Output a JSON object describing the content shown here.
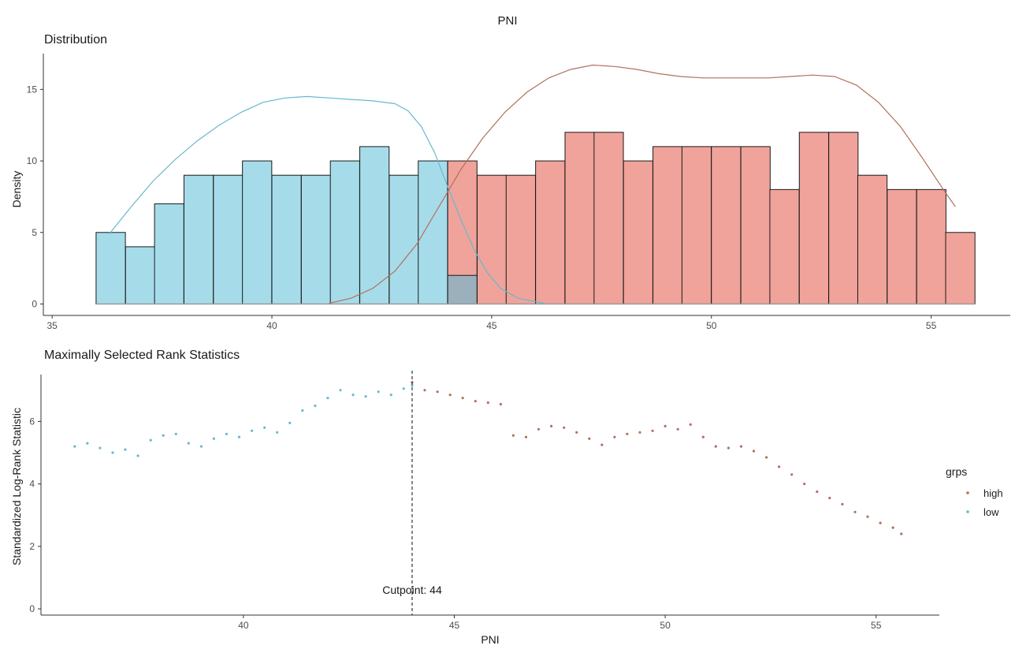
{
  "figure_title": "PNI",
  "colors": {
    "low": "#67b8cf",
    "high": "#b3705f",
    "low_fill": "#a6dcea",
    "high_fill": "#f0a39a",
    "overlap_fill": "#9bb0bc",
    "bar_stroke": "#1a1a1a",
    "axis": "#333333",
    "tick_text": "#4d4d4d"
  },
  "chart_data": [
    {
      "type": "bar",
      "title": "Distribution",
      "xlabel": "",
      "ylabel": "Density",
      "xlim": [
        34.8,
        56.8
      ],
      "ylim": [
        -0.8,
        17.5
      ],
      "x_ticks": [
        35,
        40,
        45,
        50,
        55
      ],
      "y_ticks": [
        0,
        5,
        10,
        15
      ],
      "bin_width": 0.667,
      "histograms": [
        {
          "name": "low",
          "bins_start": [
            36.0,
            36.67,
            37.33,
            38.0,
            38.67,
            39.33,
            40.0,
            40.67,
            41.33,
            42.0,
            42.67,
            43.33,
            44.0
          ],
          "values": [
            5,
            4,
            7,
            9,
            9,
            10,
            9,
            9,
            10,
            11,
            9,
            10,
            2
          ]
        },
        {
          "name": "high",
          "bins_start": [
            44.0,
            44.67,
            45.33,
            46.0,
            46.67,
            47.33,
            48.0,
            48.67,
            49.33,
            50.0,
            50.67,
            51.33,
            52.0,
            52.67,
            53.33,
            54.0,
            54.67,
            55.33
          ],
          "values": [
            10,
            9,
            9,
            10,
            12,
            12,
            10,
            11,
            11,
            11,
            11,
            8,
            12,
            12,
            9,
            8,
            8,
            5
          ]
        }
      ],
      "density_curves": [
        {
          "name": "low",
          "x": [
            36.3,
            36.8,
            37.3,
            37.8,
            38.3,
            38.8,
            39.3,
            39.8,
            40.3,
            40.8,
            41.3,
            41.8,
            42.3,
            42.8,
            43.1,
            43.4,
            43.7,
            44.0,
            44.3,
            44.6,
            44.9,
            45.2,
            45.6,
            46.2
          ],
          "y": [
            4.9,
            6.8,
            8.6,
            10.1,
            11.4,
            12.5,
            13.4,
            14.1,
            14.4,
            14.5,
            14.4,
            14.3,
            14.2,
            14.0,
            13.5,
            12.4,
            10.6,
            8.2,
            5.9,
            3.8,
            2.2,
            1.1,
            0.4,
            0.05
          ]
        },
        {
          "name": "high",
          "x": [
            41.3,
            41.8,
            42.3,
            42.8,
            43.3,
            43.8,
            44.3,
            44.8,
            45.3,
            45.8,
            46.3,
            46.8,
            47.3,
            47.8,
            48.3,
            48.8,
            49.3,
            49.8,
            50.3,
            50.8,
            51.3,
            51.8,
            52.3,
            52.8,
            53.3,
            53.8,
            54.3,
            54.8,
            55.3,
            55.55
          ],
          "y": [
            0.05,
            0.4,
            1.1,
            2.3,
            4.2,
            6.8,
            9.4,
            11.6,
            13.4,
            14.8,
            15.8,
            16.4,
            16.7,
            16.6,
            16.4,
            16.1,
            15.9,
            15.8,
            15.8,
            15.8,
            15.8,
            15.9,
            16.0,
            15.9,
            15.3,
            14.1,
            12.4,
            10.2,
            7.9,
            6.8
          ]
        }
      ]
    },
    {
      "type": "scatter",
      "title": "Maximally Selected Rank Statistics",
      "xlabel": "PNI",
      "ylabel": "Standardized Log-Rank Statistic",
      "xlim": [
        35.2,
        56.5
      ],
      "ylim": [
        -0.2,
        7.5
      ],
      "x_ticks": [
        40,
        45,
        50,
        55
      ],
      "y_ticks": [
        0,
        2,
        4,
        6
      ],
      "cutpoint": 44,
      "cutpoint_label": "Cutpoint: 44",
      "series": [
        {
          "name": "low",
          "x": [
            36.0,
            36.3,
            36.6,
            36.9,
            37.2,
            37.5,
            37.8,
            38.1,
            38.4,
            38.7,
            39.0,
            39.3,
            39.6,
            39.9,
            40.2,
            40.5,
            40.8,
            41.1,
            41.4,
            41.7,
            42.0,
            42.3,
            42.6,
            42.9,
            43.2,
            43.5,
            43.8,
            44.0
          ],
          "y": [
            5.2,
            5.3,
            5.15,
            5.0,
            5.1,
            4.9,
            5.4,
            5.55,
            5.6,
            5.3,
            5.2,
            5.45,
            5.6,
            5.5,
            5.7,
            5.8,
            5.65,
            5.95,
            6.35,
            6.5,
            6.75,
            7.0,
            6.85,
            6.8,
            6.95,
            6.85,
            7.05,
            7.15
          ]
        },
        {
          "name": "high",
          "x": [
            44.0,
            44.3,
            44.6,
            44.9,
            45.2,
            45.5,
            45.8,
            46.1,
            46.4,
            46.7,
            47.0,
            47.3,
            47.6,
            47.9,
            48.2,
            48.5,
            48.8,
            49.1,
            49.4,
            49.7,
            50.0,
            50.3,
            50.6,
            50.9,
            51.2,
            51.5,
            51.8,
            52.1,
            52.4,
            52.7,
            53.0,
            53.3,
            53.6,
            53.9,
            54.2,
            54.5,
            54.8,
            55.1,
            55.4,
            55.6
          ],
          "y": [
            7.25,
            7.0,
            6.95,
            6.85,
            6.75,
            6.65,
            6.6,
            6.55,
            5.55,
            5.5,
            5.75,
            5.85,
            5.8,
            5.65,
            5.45,
            5.25,
            5.5,
            5.6,
            5.65,
            5.7,
            5.85,
            5.75,
            5.9,
            5.5,
            5.2,
            5.15,
            5.2,
            5.05,
            4.85,
            4.55,
            4.3,
            4.0,
            3.75,
            3.55,
            3.35,
            3.1,
            2.95,
            2.75,
            2.6,
            2.4
          ]
        }
      ]
    }
  ],
  "legend": {
    "title": "grps",
    "items": [
      {
        "label": "high",
        "color": "#b3705f"
      },
      {
        "label": "low",
        "color": "#67b8cf"
      }
    ]
  }
}
